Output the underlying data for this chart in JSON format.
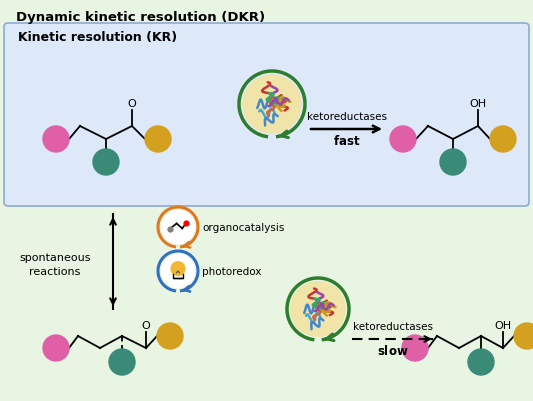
{
  "title_dkr": "Dynamic kinetic resolution (DKR)",
  "title_kr": "Kinetic resolution (KR)",
  "bg_outer": "#e8f5e2",
  "bg_inner_kr": "#dde8f8",
  "text_color": "#000000",
  "enzyme_circle_color": "#2d7d2d",
  "organocatalysis_circle_color": "#e07820",
  "photoredox_circle_color": "#3070c0",
  "pink_color": "#e060a8",
  "teal_color": "#3a8a78",
  "gold_color": "#d4a020",
  "label_ketoreductases": "ketoreductases",
  "label_fast": "fast",
  "label_slow": "slow",
  "label_spontaneous": "spontaneous\nreactions",
  "label_organocatalysis": "organocatalysis",
  "label_photoredox": "photoredox",
  "fig_w": 5.33,
  "fig_h": 4.02,
  "dpi": 100
}
